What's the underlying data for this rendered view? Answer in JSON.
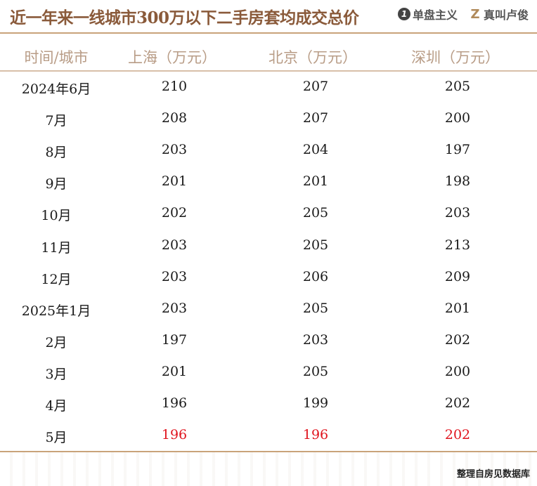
{
  "header": {
    "title": "近一年来一线城市300万以下二手房套均成交总价",
    "brand1": "单盘主义",
    "brand1_logo": "1",
    "brand2": "真叫卢俊",
    "brand2_logo": "Z"
  },
  "chart_data": {
    "type": "table",
    "columns": [
      "时间/城市",
      "上海（万元）",
      "北京（万元）",
      "深圳（万元）"
    ],
    "rows": [
      [
        "2024年6月",
        210,
        207,
        205
      ],
      [
        "7月",
        208,
        207,
        200
      ],
      [
        "8月",
        203,
        204,
        197
      ],
      [
        "9月",
        201,
        201,
        198
      ],
      [
        "10月",
        202,
        205,
        203
      ],
      [
        "11月",
        203,
        205,
        213
      ],
      [
        "12月",
        203,
        206,
        209
      ],
      [
        "2025年1月",
        203,
        205,
        201
      ],
      [
        "2月",
        197,
        203,
        202
      ],
      [
        "3月",
        201,
        205,
        200
      ],
      [
        "4月",
        196,
        199,
        202
      ],
      [
        "5月",
        196,
        196,
        202
      ]
    ],
    "highlight_row": 11,
    "highlight_color": "#e0141e"
  },
  "footer": {
    "source": "整理自房见数据库"
  }
}
